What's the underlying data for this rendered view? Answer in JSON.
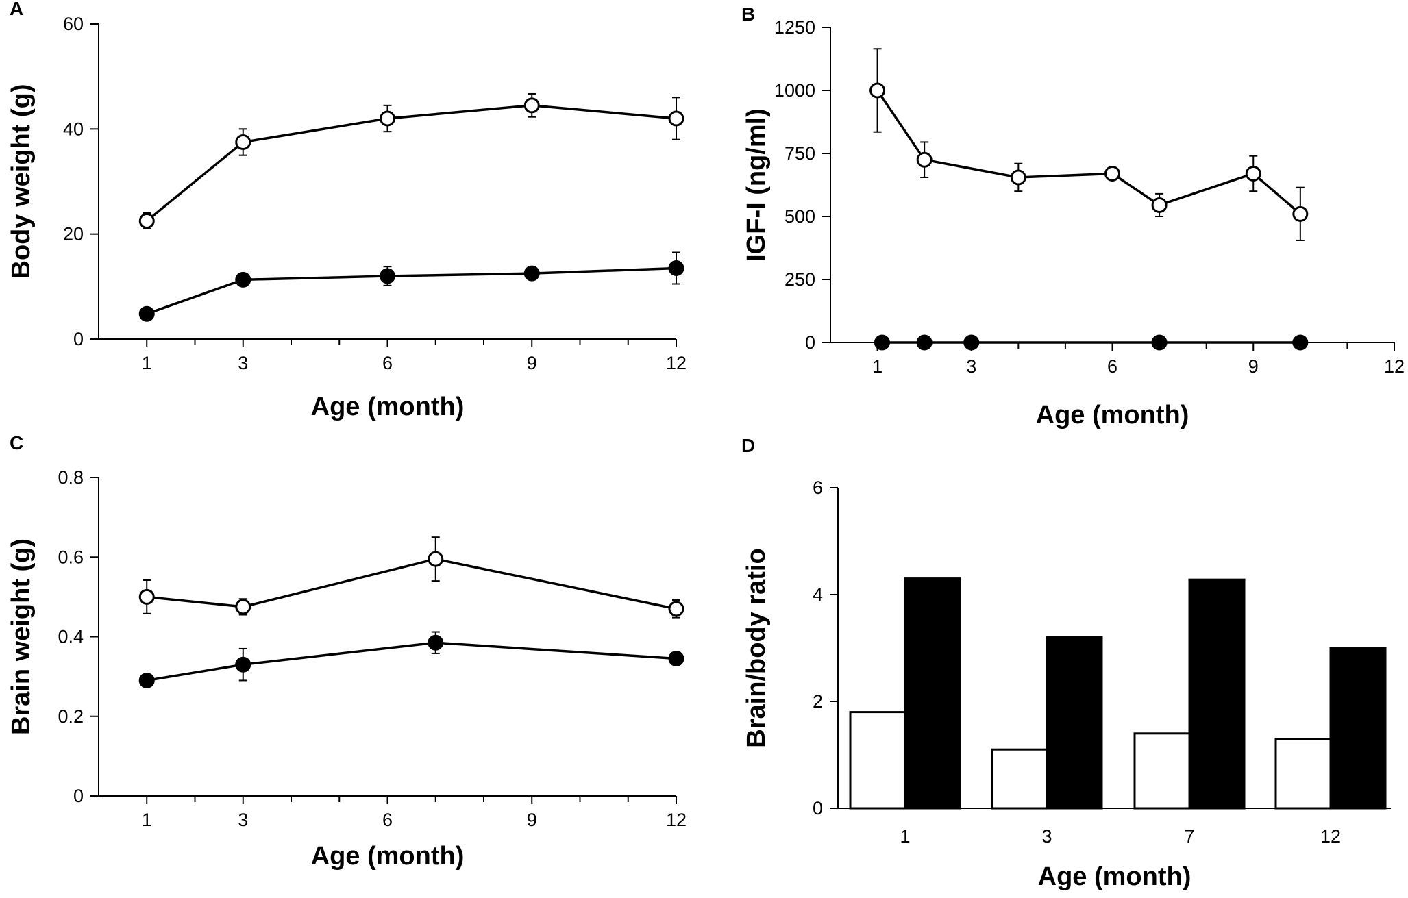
{
  "chart_data": [
    {
      "panel": "A",
      "type": "line",
      "xlabel": "Age (month)",
      "ylabel": "Body weight (g)",
      "xlim": [
        0,
        12
      ],
      "ylim": [
        0,
        60
      ],
      "x_tick_labels": [
        "1",
        "3",
        "6",
        "9",
        "12"
      ],
      "x_tick_label_values": [
        1,
        3,
        6,
        9,
        12
      ],
      "minor_x_ticks": [
        2,
        4,
        5,
        7,
        8,
        10,
        11
      ],
      "y_tick_labels": [
        "0",
        "20",
        "40",
        "60"
      ],
      "y_tick_values": [
        0,
        20,
        40,
        60
      ],
      "series": [
        {
          "name": "open",
          "marker": "open-circle",
          "x": [
            1,
            3,
            6,
            9,
            12
          ],
          "y": [
            22.5,
            37.5,
            42,
            44.5,
            42
          ],
          "err": [
            1.5,
            2.5,
            2.5,
            2.2,
            4
          ]
        },
        {
          "name": "filled",
          "marker": "filled-circle",
          "x": [
            1,
            3,
            6,
            9,
            12
          ],
          "y": [
            4.8,
            11.3,
            12,
            12.5,
            13.5
          ],
          "err": [
            0,
            0.8,
            1.8,
            1.2,
            3
          ]
        }
      ]
    },
    {
      "panel": "B",
      "type": "line",
      "xlabel": "Age (month)",
      "ylabel": "IGF-I (ng/ml)",
      "xlim": [
        0,
        12
      ],
      "ylim": [
        0,
        1250
      ],
      "x_tick_labels": [
        "1",
        "3",
        "6",
        "9",
        "12"
      ],
      "x_tick_label_values": [
        1,
        3,
        6,
        9,
        12
      ],
      "minor_x_ticks": [
        2,
        4,
        5,
        7,
        8,
        10,
        11
      ],
      "y_tick_labels": [
        "0",
        "250",
        "500",
        "750",
        "1000",
        "1250"
      ],
      "y_tick_values": [
        0,
        250,
        500,
        750,
        1000,
        1250
      ],
      "series": [
        {
          "name": "open",
          "marker": "open-circle",
          "x": [
            1,
            2,
            4,
            6,
            7,
            9,
            10
          ],
          "y": [
            1000,
            725,
            655,
            670,
            545,
            670,
            510
          ],
          "err": [
            165,
            70,
            55,
            0,
            45,
            70,
            105
          ]
        },
        {
          "name": "filled",
          "marker": "filled-circle",
          "x": [
            1.1,
            2,
            3,
            7,
            10
          ],
          "y": [
            0,
            0,
            0,
            0,
            0
          ],
          "err": [
            0,
            0,
            0,
            0,
            0
          ]
        }
      ]
    },
    {
      "panel": "C",
      "type": "line",
      "xlabel": "Age (month)",
      "ylabel": "Brain weight (g)",
      "xlim": [
        0,
        12
      ],
      "ylim": [
        0,
        0.8
      ],
      "x_tick_labels": [
        "1",
        "3",
        "6",
        "9",
        "12"
      ],
      "x_tick_label_values": [
        1,
        3,
        6,
        9,
        12
      ],
      "minor_x_ticks": [
        2,
        4,
        5,
        7,
        8,
        10,
        11
      ],
      "y_tick_labels": [
        "0",
        "0.2",
        "0.4",
        "0.6",
        "0.8"
      ],
      "y_tick_values": [
        0,
        0.2,
        0.4,
        0.6,
        0.8
      ],
      "series": [
        {
          "name": "open",
          "marker": "open-circle",
          "x": [
            1,
            3,
            7,
            12
          ],
          "y": [
            0.5,
            0.475,
            0.595,
            0.47
          ],
          "err": [
            0.042,
            0.02,
            0.055,
            0.022
          ]
        },
        {
          "name": "filled",
          "marker": "filled-circle",
          "x": [
            1,
            3,
            7,
            12
          ],
          "y": [
            0.29,
            0.33,
            0.385,
            0.345
          ],
          "err": [
            0,
            0.04,
            0.027,
            0
          ]
        }
      ]
    },
    {
      "panel": "D",
      "type": "bar",
      "xlabel": "Age (month)",
      "ylabel": "Brain/body ratio",
      "ylim": [
        0,
        6
      ],
      "categories": [
        "1",
        "3",
        "7",
        "12"
      ],
      "y_tick_labels": [
        "0",
        "2",
        "4",
        "6"
      ],
      "y_tick_values": [
        0,
        2,
        4,
        6
      ],
      "series": [
        {
          "name": "open",
          "fill": "#ffffff",
          "values": [
            1.8,
            1.1,
            1.4,
            1.3
          ]
        },
        {
          "name": "filled",
          "fill": "#000000",
          "values": [
            4.3,
            3.2,
            4.28,
            3.0
          ]
        }
      ]
    }
  ]
}
